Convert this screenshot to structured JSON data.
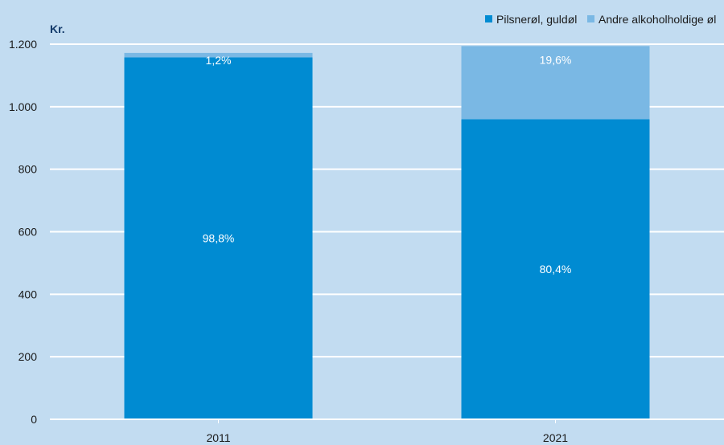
{
  "chart_data": {
    "type": "bar",
    "stacked": true,
    "unit_label": "Kr.",
    "categories": [
      "2011",
      "2021"
    ],
    "series": [
      {
        "name": "Pilsnerøl, guldøl",
        "color": "#008bd2",
        "values": [
          1158,
          960
        ],
        "labels": [
          "98,8%",
          "80,4%"
        ]
      },
      {
        "name": "Andre alkoholholdige øl",
        "color": "#7ab8e4",
        "values": [
          14,
          234
        ],
        "labels": [
          "1,2%",
          "19,6%"
        ]
      }
    ],
    "ylim": [
      0,
      1200
    ],
    "yticks": [
      0,
      200,
      400,
      600,
      800,
      1000,
      1200
    ],
    "ytick_labels": [
      "0",
      "200",
      "400",
      "600",
      "800",
      "1.000",
      "1.200"
    ],
    "grid": true,
    "legend_position": "top-right",
    "colors": {
      "background": "#c2dcf1",
      "grid": "#ffffff"
    }
  }
}
